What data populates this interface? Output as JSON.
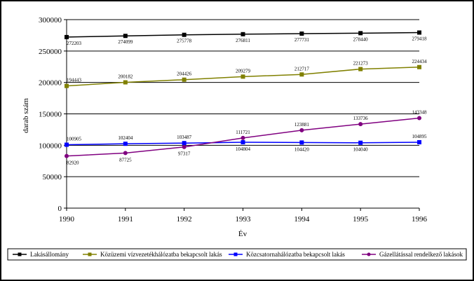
{
  "chart_data": {
    "type": "line",
    "xlabel": "Év",
    "ylabel": "darab szám",
    "ylim": [
      0,
      300000
    ],
    "yticks": [
      0,
      50000,
      100000,
      150000,
      200000,
      250000,
      300000
    ],
    "x": [
      1990,
      1991,
      1992,
      1993,
      1994,
      1995,
      1996
    ],
    "grid": true,
    "legend_position": "bottom",
    "series": [
      {
        "name": "Lakásállomány",
        "color": "#000000",
        "marker": "square",
        "values": [
          272203,
          274099,
          275778,
          276811,
          277731,
          278440,
          279418
        ],
        "labels": [
          "272203",
          "274099",
          "275778",
          "276811",
          "277731",
          "278440",
          "279418"
        ]
      },
      {
        "name": "Közüzemi vízvezetékhálózatba bekapcsolt lakás",
        "color": "#808000",
        "marker": "square",
        "values": [
          194443,
          200182,
          204426,
          209279,
          212717,
          221273,
          224434
        ],
        "labels": [
          "194443",
          "200182",
          "204426",
          "209279",
          "212717",
          "221273",
          "224434"
        ]
      },
      {
        "name": "Közcsatornahálózatba bekapcsolt lakás",
        "color": "#0000ff",
        "marker": "square",
        "values": [
          100905,
          102404,
          103487,
          104804,
          104420,
          104040,
          104895
        ],
        "labels": [
          "100905",
          "102404",
          "103487",
          "104804",
          "104420",
          "104040",
          "104895"
        ]
      },
      {
        "name": "Gázellátással rendelkező lakások",
        "color": "#800080",
        "marker": "circle",
        "values": [
          82920,
          87725,
          97317,
          111721,
          123881,
          133736,
          143348
        ],
        "labels": [
          "82920",
          "87725",
          "97317",
          "111721",
          "123881",
          "133736",
          "143348"
        ]
      }
    ]
  }
}
